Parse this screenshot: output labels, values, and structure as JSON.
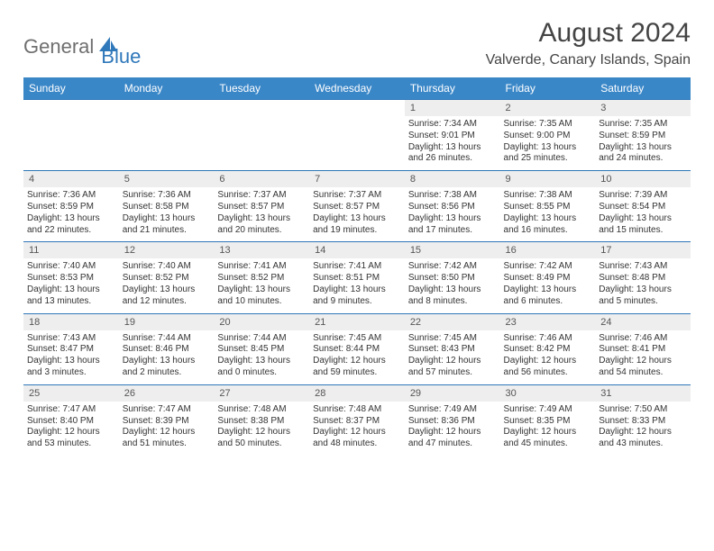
{
  "logo": {
    "general": "General",
    "blue": "Blue"
  },
  "title": "August 2024",
  "location": "Valverde, Canary Islands, Spain",
  "colors": {
    "header_bg": "#3a87c8",
    "header_text": "#ffffff",
    "daynum_bg": "#eeeeee",
    "border": "#2f78ba",
    "body_text": "#333333",
    "title_text": "#444444",
    "logo_gray": "#6f6f6f",
    "logo_blue": "#2f78ba",
    "page_bg": "#ffffff"
  },
  "typography": {
    "title_fontsize": 30,
    "location_fontsize": 16,
    "dayname_fontsize": 12,
    "daynum_fontsize": 11,
    "detail_fontsize": 10
  },
  "daynames": [
    "Sunday",
    "Monday",
    "Tuesday",
    "Wednesday",
    "Thursday",
    "Friday",
    "Saturday"
  ],
  "weeks": [
    {
      "nums": [
        "",
        "",
        "",
        "",
        "1",
        "2",
        "3"
      ],
      "cells": [
        null,
        null,
        null,
        null,
        {
          "sunrise": "Sunrise: 7:34 AM",
          "sunset": "Sunset: 9:01 PM",
          "daylight": "Daylight: 13 hours and 26 minutes."
        },
        {
          "sunrise": "Sunrise: 7:35 AM",
          "sunset": "Sunset: 9:00 PM",
          "daylight": "Daylight: 13 hours and 25 minutes."
        },
        {
          "sunrise": "Sunrise: 7:35 AM",
          "sunset": "Sunset: 8:59 PM",
          "daylight": "Daylight: 13 hours and 24 minutes."
        }
      ]
    },
    {
      "nums": [
        "4",
        "5",
        "6",
        "7",
        "8",
        "9",
        "10"
      ],
      "cells": [
        {
          "sunrise": "Sunrise: 7:36 AM",
          "sunset": "Sunset: 8:59 PM",
          "daylight": "Daylight: 13 hours and 22 minutes."
        },
        {
          "sunrise": "Sunrise: 7:36 AM",
          "sunset": "Sunset: 8:58 PM",
          "daylight": "Daylight: 13 hours and 21 minutes."
        },
        {
          "sunrise": "Sunrise: 7:37 AM",
          "sunset": "Sunset: 8:57 PM",
          "daylight": "Daylight: 13 hours and 20 minutes."
        },
        {
          "sunrise": "Sunrise: 7:37 AM",
          "sunset": "Sunset: 8:57 PM",
          "daylight": "Daylight: 13 hours and 19 minutes."
        },
        {
          "sunrise": "Sunrise: 7:38 AM",
          "sunset": "Sunset: 8:56 PM",
          "daylight": "Daylight: 13 hours and 17 minutes."
        },
        {
          "sunrise": "Sunrise: 7:38 AM",
          "sunset": "Sunset: 8:55 PM",
          "daylight": "Daylight: 13 hours and 16 minutes."
        },
        {
          "sunrise": "Sunrise: 7:39 AM",
          "sunset": "Sunset: 8:54 PM",
          "daylight": "Daylight: 13 hours and 15 minutes."
        }
      ]
    },
    {
      "nums": [
        "11",
        "12",
        "13",
        "14",
        "15",
        "16",
        "17"
      ],
      "cells": [
        {
          "sunrise": "Sunrise: 7:40 AM",
          "sunset": "Sunset: 8:53 PM",
          "daylight": "Daylight: 13 hours and 13 minutes."
        },
        {
          "sunrise": "Sunrise: 7:40 AM",
          "sunset": "Sunset: 8:52 PM",
          "daylight": "Daylight: 13 hours and 12 minutes."
        },
        {
          "sunrise": "Sunrise: 7:41 AM",
          "sunset": "Sunset: 8:52 PM",
          "daylight": "Daylight: 13 hours and 10 minutes."
        },
        {
          "sunrise": "Sunrise: 7:41 AM",
          "sunset": "Sunset: 8:51 PM",
          "daylight": "Daylight: 13 hours and 9 minutes."
        },
        {
          "sunrise": "Sunrise: 7:42 AM",
          "sunset": "Sunset: 8:50 PM",
          "daylight": "Daylight: 13 hours and 8 minutes."
        },
        {
          "sunrise": "Sunrise: 7:42 AM",
          "sunset": "Sunset: 8:49 PM",
          "daylight": "Daylight: 13 hours and 6 minutes."
        },
        {
          "sunrise": "Sunrise: 7:43 AM",
          "sunset": "Sunset: 8:48 PM",
          "daylight": "Daylight: 13 hours and 5 minutes."
        }
      ]
    },
    {
      "nums": [
        "18",
        "19",
        "20",
        "21",
        "22",
        "23",
        "24"
      ],
      "cells": [
        {
          "sunrise": "Sunrise: 7:43 AM",
          "sunset": "Sunset: 8:47 PM",
          "daylight": "Daylight: 13 hours and 3 minutes."
        },
        {
          "sunrise": "Sunrise: 7:44 AM",
          "sunset": "Sunset: 8:46 PM",
          "daylight": "Daylight: 13 hours and 2 minutes."
        },
        {
          "sunrise": "Sunrise: 7:44 AM",
          "sunset": "Sunset: 8:45 PM",
          "daylight": "Daylight: 13 hours and 0 minutes."
        },
        {
          "sunrise": "Sunrise: 7:45 AM",
          "sunset": "Sunset: 8:44 PM",
          "daylight": "Daylight: 12 hours and 59 minutes."
        },
        {
          "sunrise": "Sunrise: 7:45 AM",
          "sunset": "Sunset: 8:43 PM",
          "daylight": "Daylight: 12 hours and 57 minutes."
        },
        {
          "sunrise": "Sunrise: 7:46 AM",
          "sunset": "Sunset: 8:42 PM",
          "daylight": "Daylight: 12 hours and 56 minutes."
        },
        {
          "sunrise": "Sunrise: 7:46 AM",
          "sunset": "Sunset: 8:41 PM",
          "daylight": "Daylight: 12 hours and 54 minutes."
        }
      ]
    },
    {
      "nums": [
        "25",
        "26",
        "27",
        "28",
        "29",
        "30",
        "31"
      ],
      "cells": [
        {
          "sunrise": "Sunrise: 7:47 AM",
          "sunset": "Sunset: 8:40 PM",
          "daylight": "Daylight: 12 hours and 53 minutes."
        },
        {
          "sunrise": "Sunrise: 7:47 AM",
          "sunset": "Sunset: 8:39 PM",
          "daylight": "Daylight: 12 hours and 51 minutes."
        },
        {
          "sunrise": "Sunrise: 7:48 AM",
          "sunset": "Sunset: 8:38 PM",
          "daylight": "Daylight: 12 hours and 50 minutes."
        },
        {
          "sunrise": "Sunrise: 7:48 AM",
          "sunset": "Sunset: 8:37 PM",
          "daylight": "Daylight: 12 hours and 48 minutes."
        },
        {
          "sunrise": "Sunrise: 7:49 AM",
          "sunset": "Sunset: 8:36 PM",
          "daylight": "Daylight: 12 hours and 47 minutes."
        },
        {
          "sunrise": "Sunrise: 7:49 AM",
          "sunset": "Sunset: 8:35 PM",
          "daylight": "Daylight: 12 hours and 45 minutes."
        },
        {
          "sunrise": "Sunrise: 7:50 AM",
          "sunset": "Sunset: 8:33 PM",
          "daylight": "Daylight: 12 hours and 43 minutes."
        }
      ]
    }
  ]
}
